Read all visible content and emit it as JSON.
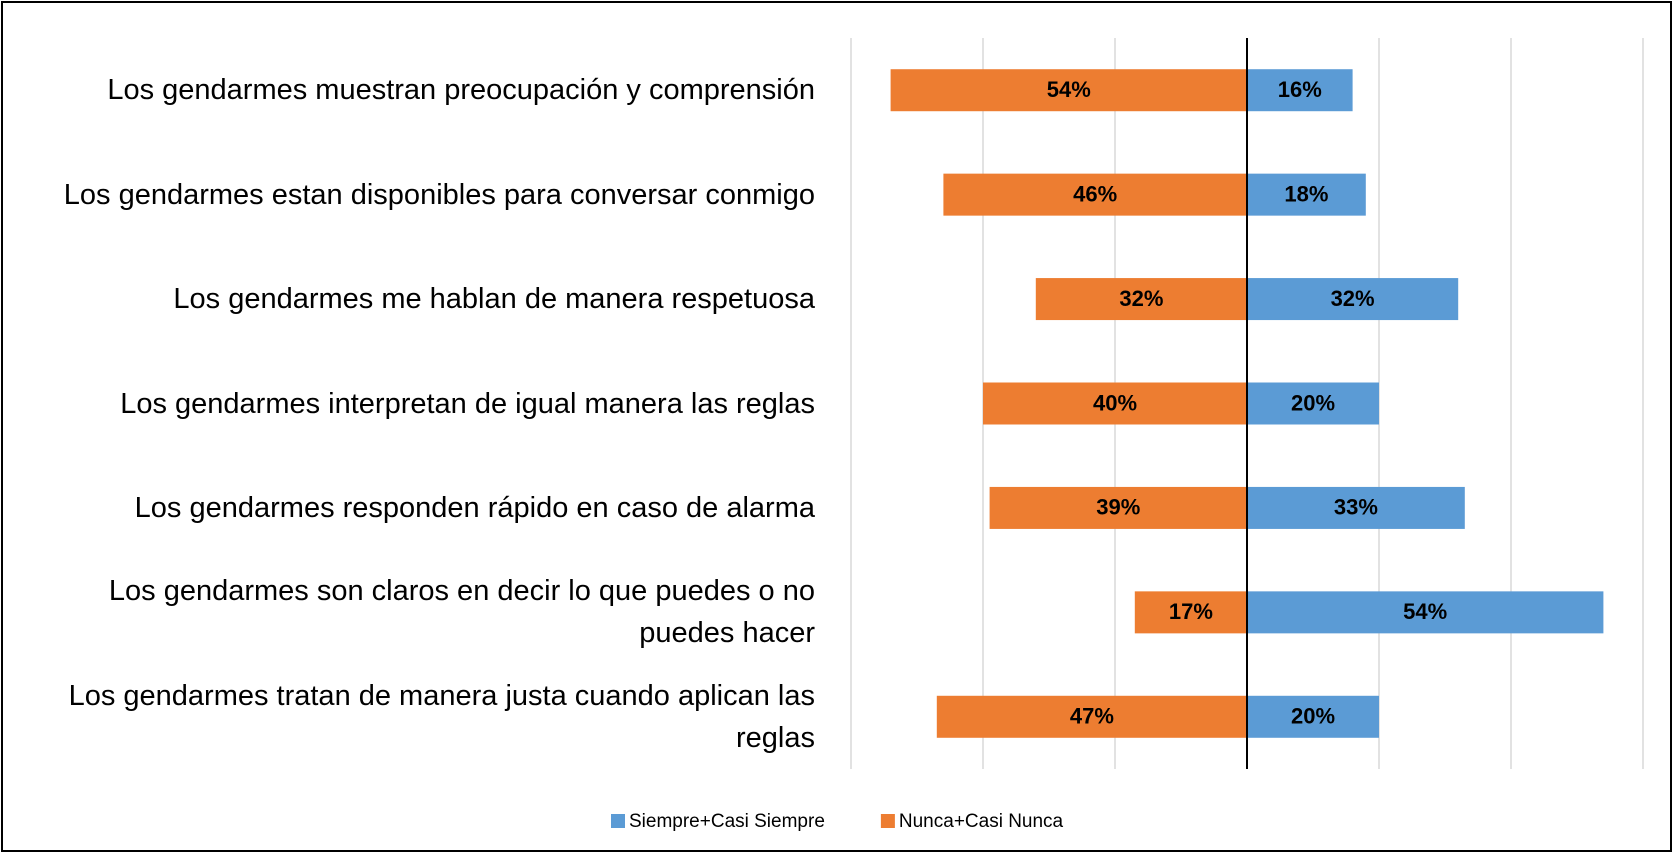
{
  "chart_data": {
    "type": "diverging-bar",
    "categories": [
      "Los gendarmes muestran preocupación y comprensión",
      "Los gendarmes estan disponibles para conversar conmigo",
      "Los gendarmes me hablan de manera respetuosa",
      "Los gendarmes interpretan de igual manera las reglas",
      "Los gendarmes responden rápido en caso de alarma",
      "Los gendarmes son claros en decir lo que puedes o no puedes hacer",
      "Los gendarmes tratan de manera justa cuando aplican las reglas"
    ],
    "series": [
      {
        "name": "Siempre+Casi Siempre",
        "color": "#5b9bd5",
        "direction": "right",
        "values": [
          16,
          18,
          32,
          20,
          33,
          54,
          20
        ],
        "value_labels": [
          "16%",
          "18%",
          "32%",
          "20%",
          "33%",
          "54%",
          "20%"
        ]
      },
      {
        "name": "Nunca+Casi Nunca",
        "color": "#ed7d31",
        "direction": "left",
        "values": [
          54,
          46,
          32,
          40,
          39,
          17,
          47
        ],
        "value_labels": [
          "54%",
          "46%",
          "32%",
          "40%",
          "39%",
          "17%",
          "47%"
        ]
      }
    ],
    "xlim": [
      -60,
      60
    ],
    "xticks": [
      -60,
      -40,
      -20,
      0,
      20,
      40,
      60
    ],
    "grid": true
  }
}
